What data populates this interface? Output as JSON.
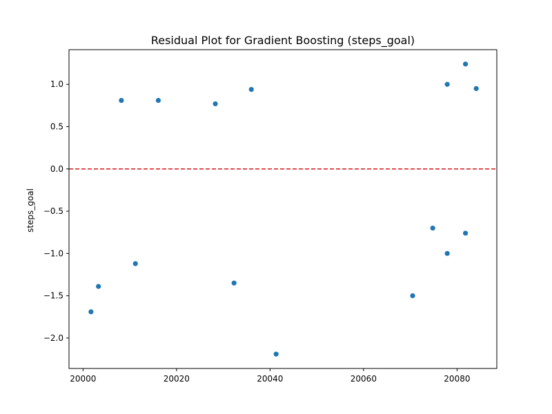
{
  "chart_data": {
    "type": "scatter",
    "title": "Residual Plot for Gradient Boosting (steps_goal)",
    "xlabel": "",
    "ylabel": "steps_goal",
    "xlim": [
      19997,
      20088.5
    ],
    "ylim": [
      -2.36,
      1.41
    ],
    "xticks": [
      20000,
      20020,
      20040,
      20060,
      20080
    ],
    "yticks": [
      1.0,
      0.5,
      0.0,
      -0.5,
      -1.0,
      -1.5,
      -2.0
    ],
    "xtick_labels": [
      "20000",
      "20020",
      "20040",
      "20060",
      "20080"
    ],
    "ytick_labels": [
      "1.0",
      "0.5",
      "0.0",
      "−0.5",
      "−1.0",
      "−1.5",
      "−2.0"
    ],
    "reference_line": {
      "y": 0.0,
      "style": "dashed",
      "color": "#d62728"
    },
    "point_color": "#1f77b4",
    "grid": false,
    "points": [
      {
        "x": 20001.7,
        "y": -1.69
      },
      {
        "x": 20003.3,
        "y": -1.39
      },
      {
        "x": 20008.2,
        "y": 0.81
      },
      {
        "x": 20011.2,
        "y": -1.12
      },
      {
        "x": 20016.1,
        "y": 0.81
      },
      {
        "x": 20028.3,
        "y": 0.77
      },
      {
        "x": 20032.3,
        "y": -1.35
      },
      {
        "x": 20036.0,
        "y": 0.94
      },
      {
        "x": 20041.3,
        "y": -2.19
      },
      {
        "x": 20070.5,
        "y": -1.5
      },
      {
        "x": 20074.8,
        "y": -0.7
      },
      {
        "x": 20077.9,
        "y": 1.0
      },
      {
        "x": 20077.9,
        "y": -1.0
      },
      {
        "x": 20081.8,
        "y": 1.24
      },
      {
        "x": 20081.8,
        "y": -0.76
      },
      {
        "x": 20084.1,
        "y": 0.95
      }
    ]
  }
}
